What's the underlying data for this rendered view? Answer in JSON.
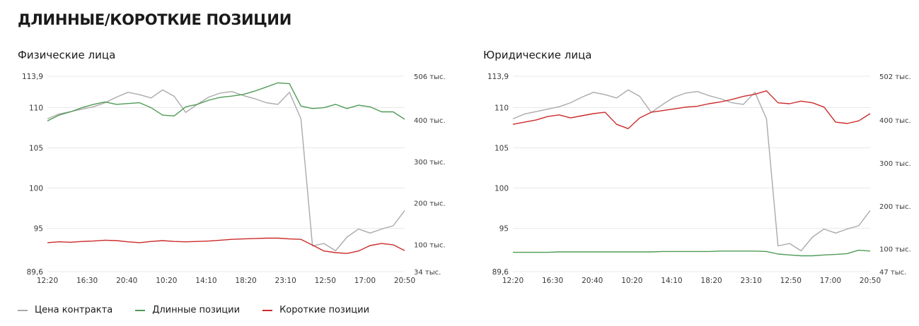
{
  "page_title": "ДЛИННЫЕ/КОРОТКИЕ ПОЗИЦИИ",
  "colors": {
    "price": "#aaaaaa",
    "long": "#4f9b55",
    "short": "#cc2a2a",
    "grid": "#e8e8e8"
  },
  "legend": [
    {
      "label": "Цена контракта",
      "color": "#aaaaaa"
    },
    {
      "label": "Длинные позиции",
      "color": "#4f9b55"
    },
    {
      "label": "Короткие позиции",
      "color": "#cc2a2a"
    }
  ],
  "chart_data": [
    {
      "type": "line",
      "title": "Физические лица",
      "x_ticks": [
        "12:20",
        "16:30",
        "20:40",
        "10:20",
        "14:10",
        "18:20",
        "23:10",
        "12:50",
        "17:00",
        "20:50"
      ],
      "y_left": {
        "min": 89.6,
        "max": 113.9,
        "ticks": [
          89.6,
          95,
          100,
          105,
          110,
          113.9
        ],
        "tick_labels": [
          "89,6",
          "95",
          "100",
          "105",
          "110",
          "113,9"
        ]
      },
      "y_right": {
        "min": 34000,
        "max": 506000,
        "ticks": [
          34000,
          100000,
          200000,
          300000,
          400000,
          506000
        ],
        "tick_labels": [
          "34 тыс.",
          "100 тыс.",
          "200 тыс.",
          "300 тыс.",
          "400 тыс.",
          "506 тыс."
        ]
      },
      "series": [
        {
          "name": "Цена контракта",
          "axis": "left",
          "values": [
            108.6,
            109.2,
            109.5,
            109.8,
            110.1,
            110.6,
            111.3,
            111.9,
            111.6,
            111.2,
            112.2,
            111.4,
            109.4,
            110.4,
            111.3,
            111.8,
            112.0,
            111.5,
            111.1,
            110.6,
            110.4,
            111.9,
            108.6,
            92.8,
            93.1,
            92.2,
            93.9,
            94.9,
            94.4,
            94.9,
            95.3,
            97.2
          ]
        },
        {
          "name": "Длинные позиции",
          "axis": "right",
          "values": [
            398000,
            412000,
            420000,
            430000,
            438000,
            444000,
            438000,
            440000,
            442000,
            430000,
            412000,
            410000,
            432000,
            438000,
            448000,
            455000,
            458000,
            462000,
            470000,
            480000,
            490000,
            488000,
            434000,
            428000,
            430000,
            438000,
            428000,
            436000,
            432000,
            420000,
            420000,
            402000
          ]
        },
        {
          "name": "Короткие позиции",
          "axis": "right",
          "values": [
            104000,
            106000,
            105000,
            107000,
            108000,
            110000,
            109000,
            106000,
            104000,
            107000,
            109000,
            107000,
            106000,
            107000,
            108000,
            110000,
            112000,
            113000,
            114000,
            115000,
            115000,
            113000,
            112000,
            98000,
            84000,
            80000,
            78000,
            84000,
            97000,
            102000,
            99000,
            85000
          ]
        }
      ]
    },
    {
      "type": "line",
      "title": "Юридические лица",
      "x_ticks": [
        "12:20",
        "16:30",
        "20:40",
        "10:20",
        "14:10",
        "18:20",
        "23:10",
        "12:50",
        "17:00",
        "20:50"
      ],
      "y_left": {
        "min": 89.6,
        "max": 113.9,
        "ticks": [
          89.6,
          95,
          100,
          105,
          110,
          113.9
        ],
        "tick_labels": [
          "89,6",
          "95",
          "100",
          "105",
          "110",
          "113,9"
        ]
      },
      "y_right": {
        "min": 47000,
        "max": 502000,
        "ticks": [
          47000,
          100000,
          200000,
          300000,
          400000,
          502000
        ],
        "tick_labels": [
          "47 тыс.",
          "100 тыс.",
          "200 тыс.",
          "300 тыс.",
          "400 тыс.",
          "502 тыс."
        ]
      },
      "series": [
        {
          "name": "Цена контракта",
          "axis": "left",
          "values": [
            108.6,
            109.2,
            109.5,
            109.8,
            110.1,
            110.6,
            111.3,
            111.9,
            111.6,
            111.2,
            112.2,
            111.4,
            109.4,
            110.4,
            111.3,
            111.8,
            112.0,
            111.5,
            111.1,
            110.6,
            110.4,
            111.9,
            108.6,
            92.8,
            93.1,
            92.2,
            93.9,
            94.9,
            94.4,
            94.9,
            95.3,
            97.2
          ]
        },
        {
          "name": "Длинные позиции",
          "axis": "right",
          "values": [
            92000,
            92000,
            92000,
            92000,
            93000,
            93000,
            93000,
            93000,
            93000,
            93000,
            93000,
            93000,
            93000,
            94000,
            94000,
            94000,
            94000,
            94000,
            95000,
            95000,
            95000,
            95000,
            94000,
            88000,
            86000,
            84000,
            84000,
            86000,
            87000,
            89000,
            97000,
            95000
          ]
        },
        {
          "name": "Короткие позиции",
          "axis": "right",
          "values": [
            390000,
            395000,
            400000,
            408000,
            412000,
            405000,
            410000,
            415000,
            418000,
            390000,
            380000,
            405000,
            418000,
            422000,
            426000,
            430000,
            432000,
            438000,
            442000,
            448000,
            455000,
            460000,
            468000,
            440000,
            438000,
            444000,
            440000,
            430000,
            395000,
            392000,
            398000,
            415000
          ]
        }
      ]
    }
  ]
}
